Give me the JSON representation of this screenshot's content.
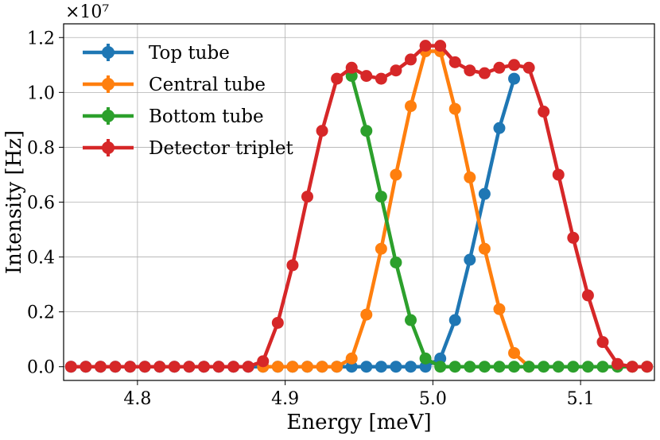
{
  "chart_data": {
    "type": "line",
    "title": "",
    "xlabel": "Energy [meV]",
    "ylabel": "Intensity [Hz]",
    "y_multiplier": "×10⁷",
    "xlim": [
      4.75,
      5.15
    ],
    "ylim": [
      -0.05,
      1.25
    ],
    "x_ticks": [
      4.8,
      4.9,
      5.0,
      5.1
    ],
    "x_tick_labels": [
      "4.8",
      "4.9",
      "5.0",
      "5.1"
    ],
    "y_ticks": [
      0.0,
      0.2,
      0.4,
      0.6,
      0.8,
      1.0,
      1.2
    ],
    "y_tick_labels": [
      "0.0",
      "0.2",
      "0.4",
      "0.6",
      "0.8",
      "1.0",
      "1.2"
    ],
    "grid": true,
    "legend_position": "top-left",
    "x": [
      4.755,
      4.765,
      4.775,
      4.785,
      4.795,
      4.805,
      4.815,
      4.825,
      4.835,
      4.845,
      4.855,
      4.865,
      4.875,
      4.885,
      4.895,
      4.905,
      4.915,
      4.925,
      4.935,
      4.945,
      4.955,
      4.965,
      4.975,
      4.985,
      4.995,
      5.005,
      5.015,
      5.025,
      5.035,
      5.045,
      5.055,
      5.065,
      5.075,
      5.085,
      5.095,
      5.105,
      5.115,
      5.125,
      5.135,
      5.145
    ],
    "series": [
      {
        "name": "Top tube",
        "color": "#1f77b4",
        "values": [
          0,
          0,
          0,
          0,
          0,
          0,
          0,
          0,
          0,
          0,
          0,
          0,
          0,
          0,
          0,
          0,
          0,
          0,
          0,
          0,
          0,
          0,
          0,
          0,
          0,
          0.03,
          0.17,
          0.39,
          0.63,
          0.87,
          1.05,
          null,
          null,
          null,
          null,
          null,
          null,
          null,
          null,
          null
        ]
      },
      {
        "name": "Central tube",
        "color": "#ff7f0e",
        "values": [
          null,
          null,
          null,
          null,
          null,
          null,
          null,
          null,
          null,
          null,
          null,
          null,
          null,
          0,
          0,
          0,
          0,
          0,
          0,
          0.03,
          0.19,
          0.43,
          0.7,
          0.95,
          1.15,
          1.15,
          0.94,
          0.69,
          0.43,
          0.21,
          0.05,
          0,
          null,
          null,
          null,
          null,
          null,
          null,
          null,
          null
        ]
      },
      {
        "name": "Bottom tube",
        "color": "#2ca02c",
        "values": [
          null,
          null,
          null,
          null,
          null,
          null,
          null,
          null,
          null,
          null,
          null,
          null,
          null,
          null,
          null,
          null,
          null,
          null,
          null,
          1.06,
          0.86,
          0.62,
          0.38,
          0.17,
          0.03,
          0,
          0,
          0,
          0,
          0,
          0,
          0,
          0,
          0,
          0,
          0,
          0,
          0,
          0,
          0
        ]
      },
      {
        "name": "Detector triplet",
        "color": "#d62728",
        "values": [
          0,
          0,
          0,
          0,
          0,
          0,
          0,
          0,
          0,
          0,
          0,
          0,
          0,
          0.02,
          0.16,
          0.37,
          0.62,
          0.86,
          1.05,
          1.09,
          1.06,
          1.05,
          1.08,
          1.12,
          1.17,
          1.17,
          1.11,
          1.08,
          1.07,
          1.09,
          1.1,
          1.09,
          0.93,
          0.7,
          0.47,
          0.26,
          0.09,
          0.01,
          0,
          0
        ]
      }
    ]
  }
}
